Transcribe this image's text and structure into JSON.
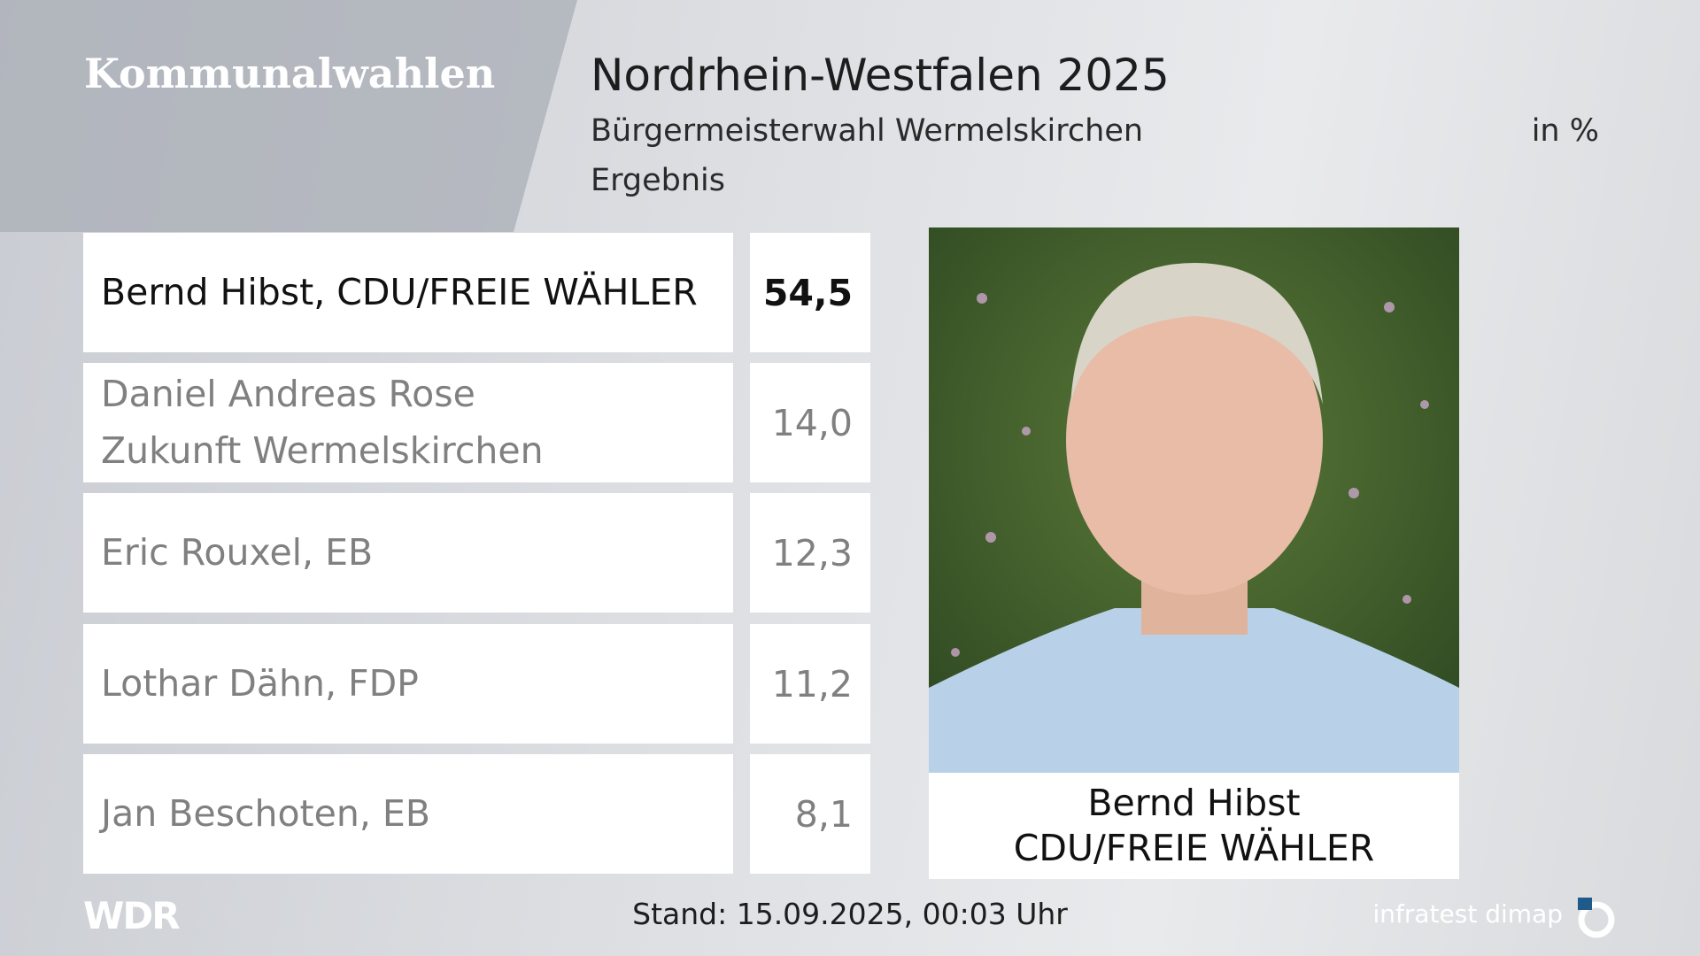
{
  "header": {
    "left_title": "Kommunalwahlen",
    "title": "Nordrhein-Westfalen 2025",
    "subtitle": "Bürgermeisterwahl Wermelskirchen",
    "unit": "in %",
    "label": "Ergebnis"
  },
  "table": {
    "rows": [
      {
        "lines": [
          "Bernd Hibst, CDU/FREIE WÄHLER"
        ],
        "value": "54,5"
      },
      {
        "lines": [
          "Daniel Andreas Rose",
          "Zukunft Wermelskirchen"
        ],
        "value": "14,0"
      },
      {
        "lines": [
          "Eric Rouxel, EB"
        ],
        "value": "12,3"
      },
      {
        "lines": [
          "Lothar Dähn, FDP"
        ],
        "value": "11,2"
      },
      {
        "lines": [
          "Jan Beschoten, EB"
        ],
        "value": "8,1"
      }
    ]
  },
  "photo": {
    "caption": [
      "Bernd Hibst",
      "CDU/FREIE WÄHLER"
    ]
  },
  "footer": {
    "logo": "WDR",
    "status": "Stand: 15.09.2025, 00:03 Uhr",
    "source": "infratest dimap"
  }
}
